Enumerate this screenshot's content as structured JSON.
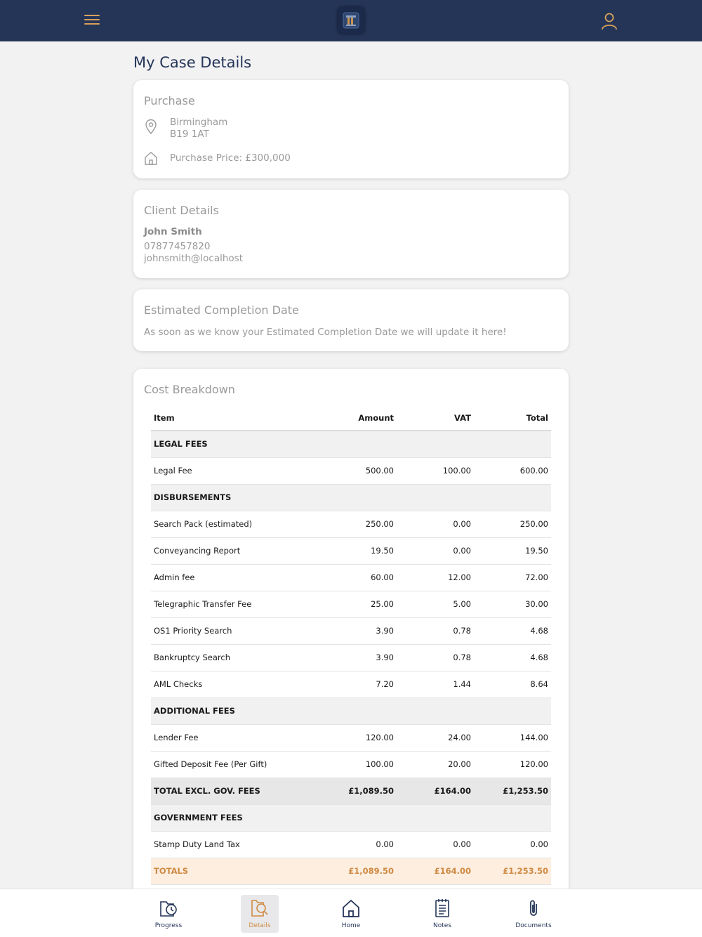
{
  "header": {
    "menu_icon": "hamburger-menu-icon",
    "logo_icon": "firm-logo-icon",
    "user_icon": "user-icon",
    "accent_color": "#d8a15a",
    "bar_color": "#243558"
  },
  "page_title": "My Case Details",
  "purchase": {
    "title": "Purchase",
    "city": "Birmingham",
    "postcode": "B19 1AT",
    "price": "Purchase Price: £300,000",
    "location_icon": "map-pin-icon",
    "house_icon": "house-icon"
  },
  "client": {
    "title": "Client Details",
    "name": "John Smith",
    "phone": "07877457820",
    "email": "johnsmith@localhost"
  },
  "completion": {
    "title": "Estimated Completion Date",
    "message": "As soon as we know your Estimated Completion Date we will update it here!"
  },
  "cost": {
    "title": "Cost Breakdown",
    "headers": {
      "item": "Item",
      "amount": "Amount",
      "vat": "VAT",
      "total": "Total"
    },
    "legal_fees": {
      "label": "LEGAL FEES",
      "rows": [
        {
          "item": "Legal Fee",
          "amount": "500.00",
          "vat": "100.00",
          "total": "600.00"
        }
      ]
    },
    "disbursements": {
      "label": "DISBURSEMENTS",
      "rows": [
        {
          "item": "Search Pack (estimated)",
          "amount": "250.00",
          "vat": "0.00",
          "total": "250.00"
        },
        {
          "item": "Conveyancing Report",
          "amount": "19.50",
          "vat": "0.00",
          "total": "19.50"
        },
        {
          "item": "Admin fee",
          "amount": "60.00",
          "vat": "12.00",
          "total": "72.00"
        },
        {
          "item": "Telegraphic Transfer Fee",
          "amount": "25.00",
          "vat": "5.00",
          "total": "30.00"
        },
        {
          "item": "OS1 Priority Search",
          "amount": "3.90",
          "vat": "0.78",
          "total": "4.68"
        },
        {
          "item": "Bankruptcy Search",
          "amount": "3.90",
          "vat": "0.78",
          "total": "4.68"
        },
        {
          "item": "AML Checks",
          "amount": "7.20",
          "vat": "1.44",
          "total": "8.64"
        }
      ]
    },
    "additional_fees": {
      "label": "ADDITIONAL FEES",
      "rows": [
        {
          "item": "Lender Fee",
          "amount": "120.00",
          "vat": "24.00",
          "total": "144.00"
        },
        {
          "item": "Gifted Deposit Fee (Per Gift)",
          "amount": "100.00",
          "vat": "20.00",
          "total": "120.00"
        }
      ]
    },
    "subtotal": {
      "item": "TOTAL EXCL. GOV. FEES",
      "amount": "£1,089.50",
      "vat": "£164.00",
      "total": "£1,253.50"
    },
    "government_fees": {
      "label": "GOVERNMENT FEES",
      "rows": [
        {
          "item": "Stamp Duty Land Tax",
          "amount": "0.00",
          "vat": "0.00",
          "total": "0.00"
        }
      ]
    },
    "totals": {
      "item": "TOTALS",
      "amount": "£1,089.50",
      "vat": "£164.00",
      "total": "£1,253.50"
    }
  },
  "nav": {
    "items": [
      {
        "label": "Progress",
        "icon": "progress-clock-icon"
      },
      {
        "label": "Details",
        "icon": "details-search-icon",
        "active": true
      },
      {
        "label": "Home",
        "icon": "home-icon"
      },
      {
        "label": "Notes",
        "icon": "notepad-icon"
      },
      {
        "label": "Documents",
        "icon": "paperclip-icon"
      }
    ],
    "active_color": "#cf8a42"
  }
}
